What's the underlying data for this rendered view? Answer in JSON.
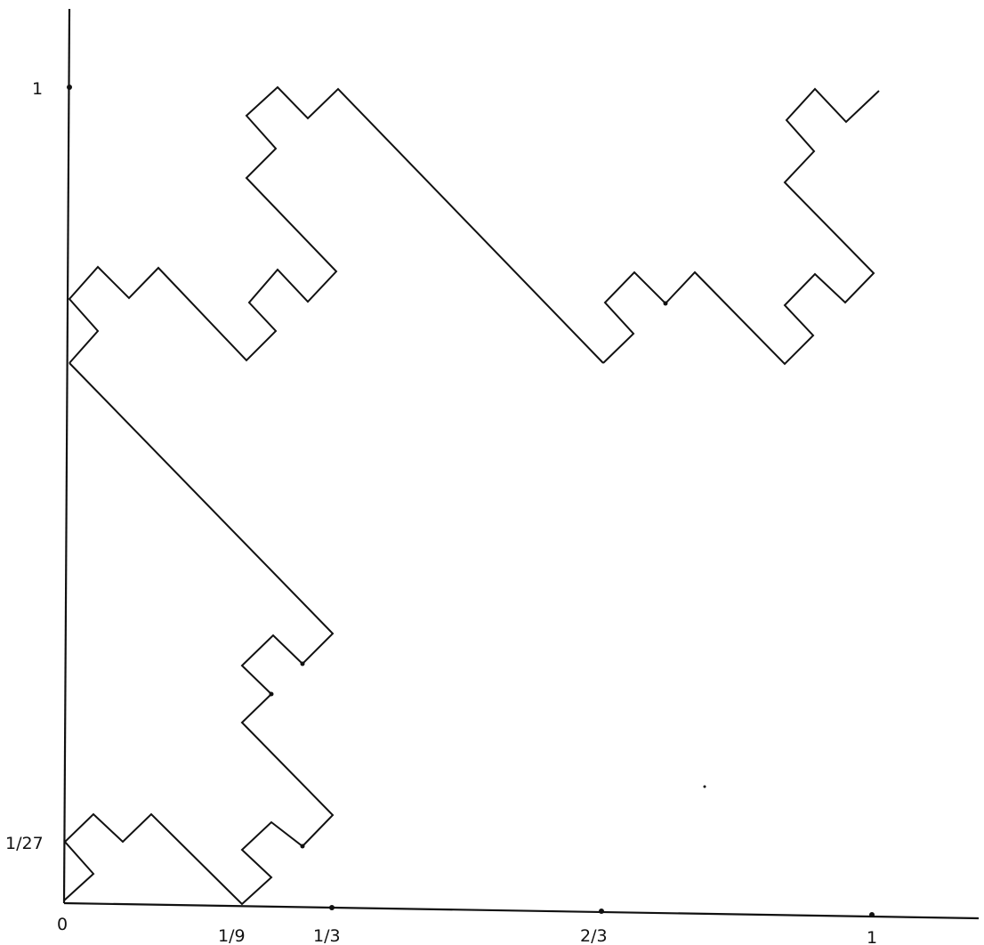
{
  "diagram": {
    "x_tick_labels": [
      "0",
      "1/9",
      "1/3",
      "2/3",
      "1"
    ],
    "y_tick_labels": [
      "1/27",
      "1"
    ]
  }
}
